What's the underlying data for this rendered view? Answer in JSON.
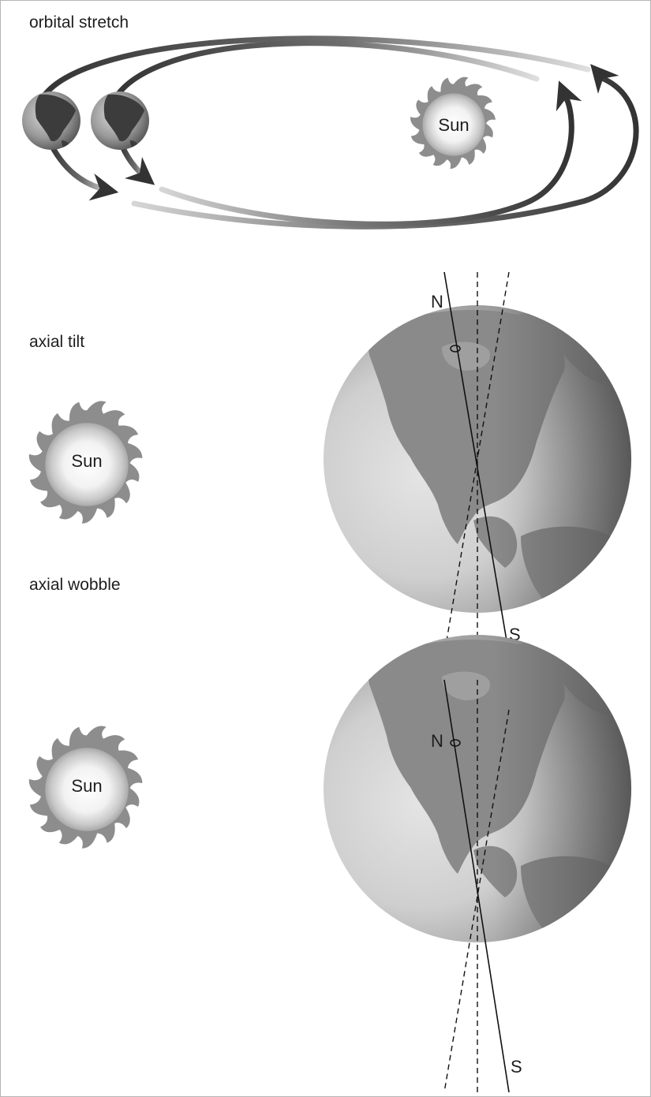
{
  "panels": {
    "orbital_stretch": {
      "label": "orbital stretch",
      "sun_label": "Sun"
    },
    "axial_tilt": {
      "label": "axial tilt",
      "sun_label": "Sun",
      "north_label": "N",
      "south_label": "S"
    },
    "axial_wobble": {
      "label": "axial wobble",
      "sun_label": "Sun",
      "north_label": "N",
      "south_label": "S"
    }
  }
}
